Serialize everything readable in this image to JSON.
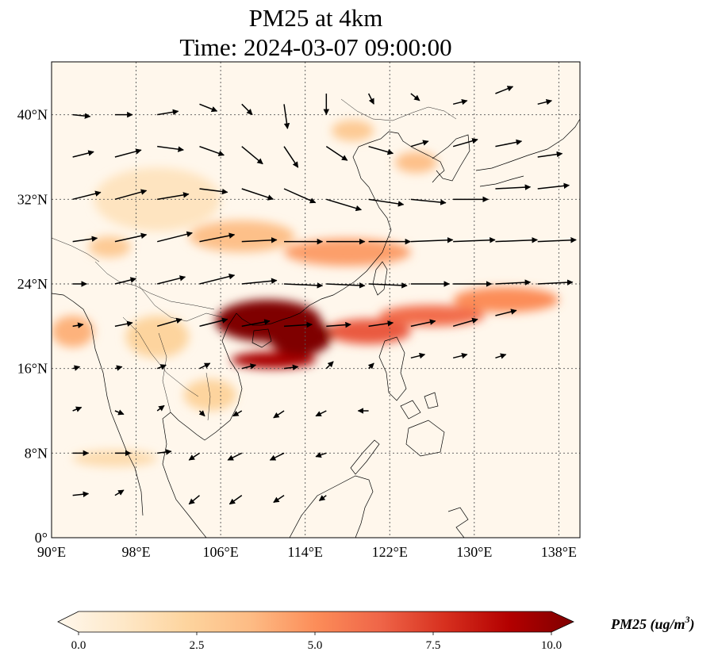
{
  "map": {
    "title_line1": "PM25 at 4km",
    "title_line2": "Time: 2024-03-07 09:00:00",
    "extent": {
      "lon_min": 90,
      "lon_max": 140,
      "lat_min": 0,
      "lat_max": 45
    },
    "lon_ticks": [
      {
        "value": 90,
        "label": "90°E"
      },
      {
        "value": 98,
        "label": "98°E"
      },
      {
        "value": 106,
        "label": "106°E"
      },
      {
        "value": 114,
        "label": "114°E"
      },
      {
        "value": 122,
        "label": "122°E"
      },
      {
        "value": 130,
        "label": "130°E"
      },
      {
        "value": 138,
        "label": "138°E"
      }
    ],
    "lat_ticks": [
      {
        "value": 0,
        "label": "0°"
      },
      {
        "value": 8,
        "label": "8°N"
      },
      {
        "value": 16,
        "label": "16°N"
      },
      {
        "value": 24,
        "label": "24°N"
      },
      {
        "value": 32,
        "label": "32°N"
      },
      {
        "value": 40,
        "label": "40°N"
      }
    ],
    "gridlines": true,
    "colormap": "OrRd",
    "colormap_stops": [
      "#fff7ec",
      "#fee8c8",
      "#fdd49e",
      "#fdbb84",
      "#fc8d59",
      "#ef6548",
      "#d7301f",
      "#b30000",
      "#7f0000"
    ],
    "colorbar": {
      "min": 0.0,
      "max": 10.0,
      "extend": "both",
      "ticks": [
        "0.0",
        "2.5",
        "5.0",
        "7.5",
        "10.0"
      ],
      "label_prefix": "PM25 (ug/m",
      "label_sup": "3",
      "label_suffix": ")"
    }
  },
  "chart_data": {
    "type": "heatmap",
    "variable": "PM25",
    "level": "4km",
    "units": "ug/m3",
    "pm25_plumes": [
      {
        "lon": 110.5,
        "lat": 20.5,
        "value": 10.0,
        "r_lon": 5.0,
        "r_lat": 2.0
      },
      {
        "lon": 113.5,
        "lat": 19.0,
        "value": 10.0,
        "r_lon": 3.0,
        "r_lat": 1.8
      },
      {
        "lon": 111.0,
        "lat": 16.8,
        "value": 9.0,
        "r_lon": 4.0,
        "r_lat": 0.8
      },
      {
        "lon": 120.0,
        "lat": 19.5,
        "value": 6.5,
        "r_lon": 4.0,
        "r_lat": 1.2
      },
      {
        "lon": 126.0,
        "lat": 21.0,
        "value": 6.0,
        "r_lon": 5.0,
        "r_lat": 1.0
      },
      {
        "lon": 133.0,
        "lat": 22.5,
        "value": 5.0,
        "r_lon": 5.0,
        "r_lat": 1.2
      },
      {
        "lon": 118.0,
        "lat": 27.0,
        "value": 4.5,
        "r_lon": 6.0,
        "r_lat": 1.3
      },
      {
        "lon": 108.0,
        "lat": 28.5,
        "value": 3.5,
        "r_lon": 5.0,
        "r_lat": 1.5
      },
      {
        "lon": 95.5,
        "lat": 27.5,
        "value": 3.0,
        "r_lon": 2.0,
        "r_lat": 1.0
      },
      {
        "lon": 124.5,
        "lat": 35.5,
        "value": 3.5,
        "r_lon": 2.0,
        "r_lat": 1.0
      },
      {
        "lon": 118.5,
        "lat": 38.5,
        "value": 3.0,
        "r_lon": 2.0,
        "r_lat": 1.0
      },
      {
        "lon": 92.0,
        "lat": 19.5,
        "value": 4.0,
        "r_lon": 2.0,
        "r_lat": 1.5
      },
      {
        "lon": 100.0,
        "lat": 19.0,
        "value": 2.5,
        "r_lon": 3.0,
        "r_lat": 2.0
      },
      {
        "lon": 105.0,
        "lat": 13.5,
        "value": 2.5,
        "r_lon": 2.5,
        "r_lat": 1.5
      },
      {
        "lon": 96.0,
        "lat": 7.5,
        "value": 2.0,
        "r_lon": 4.0,
        "r_lat": 0.8
      },
      {
        "lon": 100.0,
        "lat": 32.0,
        "value": 1.5,
        "r_lon": 6.0,
        "r_lat": 3.0
      }
    ],
    "wind_vectors": [
      {
        "lon": 92,
        "lat": 40,
        "u": 1.0,
        "v": -0.1
      },
      {
        "lon": 96,
        "lat": 40,
        "u": 1.0,
        "v": 0.0
      },
      {
        "lon": 100,
        "lat": 40,
        "u": 1.2,
        "v": 0.2
      },
      {
        "lon": 104,
        "lat": 41,
        "u": 1.0,
        "v": -0.4
      },
      {
        "lon": 108,
        "lat": 41,
        "u": 0.6,
        "v": -0.6
      },
      {
        "lon": 112,
        "lat": 41,
        "u": 0.2,
        "v": -1.4
      },
      {
        "lon": 116,
        "lat": 42,
        "u": 0.0,
        "v": -1.2
      },
      {
        "lon": 120,
        "lat": 42,
        "u": 0.3,
        "v": -0.6
      },
      {
        "lon": 124,
        "lat": 42,
        "u": 0.5,
        "v": -0.4
      },
      {
        "lon": 128,
        "lat": 41,
        "u": 0.8,
        "v": 0.2
      },
      {
        "lon": 132,
        "lat": 42,
        "u": 1.0,
        "v": 0.4
      },
      {
        "lon": 136,
        "lat": 41,
        "u": 0.8,
        "v": 0.2
      },
      {
        "lon": 92,
        "lat": 36,
        "u": 1.2,
        "v": 0.3
      },
      {
        "lon": 96,
        "lat": 36,
        "u": 1.5,
        "v": 0.4
      },
      {
        "lon": 100,
        "lat": 37,
        "u": 1.5,
        "v": -0.2
      },
      {
        "lon": 104,
        "lat": 37,
        "u": 1.4,
        "v": -0.5
      },
      {
        "lon": 108,
        "lat": 37,
        "u": 1.2,
        "v": -1.0
      },
      {
        "lon": 112,
        "lat": 37,
        "u": 0.8,
        "v": -1.2
      },
      {
        "lon": 116,
        "lat": 37,
        "u": 1.2,
        "v": -0.8
      },
      {
        "lon": 120,
        "lat": 37,
        "u": 1.4,
        "v": -0.4
      },
      {
        "lon": 124,
        "lat": 37,
        "u": 1.0,
        "v": 0.3
      },
      {
        "lon": 128,
        "lat": 37,
        "u": 1.4,
        "v": 0.4
      },
      {
        "lon": 132,
        "lat": 37,
        "u": 1.5,
        "v": 0.3
      },
      {
        "lon": 136,
        "lat": 36,
        "u": 1.4,
        "v": 0.2
      },
      {
        "lon": 92,
        "lat": 32,
        "u": 1.6,
        "v": 0.4
      },
      {
        "lon": 96,
        "lat": 32,
        "u": 1.8,
        "v": 0.5
      },
      {
        "lon": 100,
        "lat": 32,
        "u": 1.8,
        "v": 0.3
      },
      {
        "lon": 104,
        "lat": 33,
        "u": 1.6,
        "v": -0.2
      },
      {
        "lon": 108,
        "lat": 33,
        "u": 1.8,
        "v": -0.6
      },
      {
        "lon": 112,
        "lat": 33,
        "u": 1.8,
        "v": -0.8
      },
      {
        "lon": 116,
        "lat": 32,
        "u": 2.0,
        "v": -0.6
      },
      {
        "lon": 120,
        "lat": 32,
        "u": 2.0,
        "v": -0.3
      },
      {
        "lon": 124,
        "lat": 32,
        "u": 2.0,
        "v": -0.2
      },
      {
        "lon": 128,
        "lat": 32,
        "u": 2.0,
        "v": 0.0
      },
      {
        "lon": 132,
        "lat": 33,
        "u": 2.0,
        "v": 0.1
      },
      {
        "lon": 136,
        "lat": 33,
        "u": 1.8,
        "v": 0.2
      },
      {
        "lon": 92,
        "lat": 28,
        "u": 1.4,
        "v": 0.2
      },
      {
        "lon": 96,
        "lat": 28,
        "u": 1.8,
        "v": 0.4
      },
      {
        "lon": 100,
        "lat": 28,
        "u": 2.0,
        "v": 0.5
      },
      {
        "lon": 104,
        "lat": 28,
        "u": 2.0,
        "v": 0.4
      },
      {
        "lon": 108,
        "lat": 28,
        "u": 2.0,
        "v": 0.1
      },
      {
        "lon": 112,
        "lat": 28,
        "u": 2.2,
        "v": 0.0
      },
      {
        "lon": 116,
        "lat": 28,
        "u": 2.2,
        "v": 0.0
      },
      {
        "lon": 120,
        "lat": 28,
        "u": 2.4,
        "v": 0.0
      },
      {
        "lon": 124,
        "lat": 28,
        "u": 2.4,
        "v": 0.1
      },
      {
        "lon": 128,
        "lat": 28,
        "u": 2.4,
        "v": 0.1
      },
      {
        "lon": 132,
        "lat": 28,
        "u": 2.4,
        "v": 0.1
      },
      {
        "lon": 136,
        "lat": 28,
        "u": 2.2,
        "v": 0.1
      },
      {
        "lon": 92,
        "lat": 24,
        "u": 0.8,
        "v": 0.0
      },
      {
        "lon": 96,
        "lat": 24,
        "u": 1.2,
        "v": 0.3
      },
      {
        "lon": 100,
        "lat": 24,
        "u": 1.6,
        "v": 0.4
      },
      {
        "lon": 104,
        "lat": 24,
        "u": 2.0,
        "v": 0.5
      },
      {
        "lon": 108,
        "lat": 24,
        "u": 2.0,
        "v": 0.2
      },
      {
        "lon": 112,
        "lat": 24,
        "u": 2.2,
        "v": -0.1
      },
      {
        "lon": 116,
        "lat": 24,
        "u": 2.2,
        "v": -0.1
      },
      {
        "lon": 120,
        "lat": 24,
        "u": 2.2,
        "v": -0.1
      },
      {
        "lon": 124,
        "lat": 24,
        "u": 2.2,
        "v": 0.0
      },
      {
        "lon": 128,
        "lat": 24,
        "u": 2.2,
        "v": 0.0
      },
      {
        "lon": 132,
        "lat": 24,
        "u": 2.0,
        "v": 0.1
      },
      {
        "lon": 136,
        "lat": 24,
        "u": 2.0,
        "v": 0.1
      },
      {
        "lon": 92,
        "lat": 20,
        "u": 0.6,
        "v": 0.1
      },
      {
        "lon": 96,
        "lat": 20,
        "u": 1.0,
        "v": 0.2
      },
      {
        "lon": 100,
        "lat": 20,
        "u": 1.4,
        "v": 0.4
      },
      {
        "lon": 104,
        "lat": 20,
        "u": 1.6,
        "v": 0.4
      },
      {
        "lon": 108,
        "lat": 20,
        "u": 1.6,
        "v": 0.3
      },
      {
        "lon": 112,
        "lat": 20,
        "u": 1.6,
        "v": 0.1
      },
      {
        "lon": 116,
        "lat": 20,
        "u": 1.4,
        "v": 0.1
      },
      {
        "lon": 120,
        "lat": 20,
        "u": 1.4,
        "v": 0.2
      },
      {
        "lon": 124,
        "lat": 20,
        "u": 1.4,
        "v": 0.3
      },
      {
        "lon": 128,
        "lat": 20,
        "u": 1.4,
        "v": 0.4
      },
      {
        "lon": 132,
        "lat": 21,
        "u": 1.2,
        "v": 0.3
      },
      {
        "lon": 92,
        "lat": 16,
        "u": 0.4,
        "v": 0.1
      },
      {
        "lon": 96,
        "lat": 16,
        "u": 0.4,
        "v": 0.1
      },
      {
        "lon": 100,
        "lat": 16,
        "u": 0.5,
        "v": 0.2
      },
      {
        "lon": 104,
        "lat": 16,
        "u": 0.6,
        "v": 0.3
      },
      {
        "lon": 108,
        "lat": 16,
        "u": 0.8,
        "v": 0.2
      },
      {
        "lon": 112,
        "lat": 16,
        "u": 0.8,
        "v": 0.1
      },
      {
        "lon": 116,
        "lat": 16,
        "u": 0.4,
        "v": 0.4
      },
      {
        "lon": 120,
        "lat": 16,
        "u": 0.3,
        "v": 0.3
      },
      {
        "lon": 124,
        "lat": 17,
        "u": 0.8,
        "v": 0.2
      },
      {
        "lon": 128,
        "lat": 17,
        "u": 0.8,
        "v": 0.2
      },
      {
        "lon": 132,
        "lat": 17,
        "u": 0.6,
        "v": 0.2
      },
      {
        "lon": 92,
        "lat": 12,
        "u": 0.5,
        "v": 0.2
      },
      {
        "lon": 96,
        "lat": 12,
        "u": 0.5,
        "v": -0.2
      },
      {
        "lon": 100,
        "lat": 12,
        "u": 0.4,
        "v": 0.3
      },
      {
        "lon": 104,
        "lat": 12,
        "u": 0.3,
        "v": -0.3
      },
      {
        "lon": 108,
        "lat": 12,
        "u": -0.5,
        "v": -0.3
      },
      {
        "lon": 112,
        "lat": 12,
        "u": -0.6,
        "v": -0.4
      },
      {
        "lon": 116,
        "lat": 12,
        "u": -0.6,
        "v": -0.3
      },
      {
        "lon": 120,
        "lat": 12,
        "u": -0.6,
        "v": 0.0
      },
      {
        "lon": 92,
        "lat": 8,
        "u": 0.9,
        "v": 0.0
      },
      {
        "lon": 96,
        "lat": 8,
        "u": 0.9,
        "v": 0.0
      },
      {
        "lon": 100,
        "lat": 8,
        "u": 0.8,
        "v": 0.1
      },
      {
        "lon": 104,
        "lat": 8,
        "u": -0.6,
        "v": -0.4
      },
      {
        "lon": 108,
        "lat": 8,
        "u": -0.8,
        "v": -0.4
      },
      {
        "lon": 112,
        "lat": 8,
        "u": -0.8,
        "v": -0.4
      },
      {
        "lon": 116,
        "lat": 8,
        "u": -0.6,
        "v": -0.2
      },
      {
        "lon": 92,
        "lat": 4,
        "u": 0.9,
        "v": 0.1
      },
      {
        "lon": 96,
        "lat": 4,
        "u": 0.5,
        "v": 0.3
      },
      {
        "lon": 104,
        "lat": 4,
        "u": -0.6,
        "v": -0.5
      },
      {
        "lon": 108,
        "lat": 4,
        "u": -0.7,
        "v": -0.5
      },
      {
        "lon": 112,
        "lat": 4,
        "u": -0.6,
        "v": -0.4
      },
      {
        "lon": 116,
        "lat": 4,
        "u": -0.4,
        "v": -0.3
      }
    ]
  }
}
